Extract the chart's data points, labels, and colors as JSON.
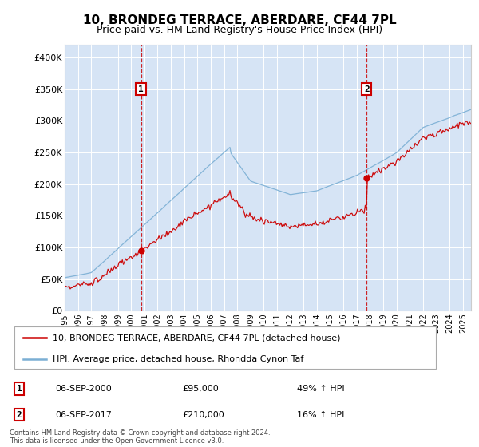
{
  "title": "10, BRONDEG TERRACE, ABERDARE, CF44 7PL",
  "subtitle": "Price paid vs. HM Land Registry's House Price Index (HPI)",
  "red_label": "10, BRONDEG TERRACE, ABERDARE, CF44 7PL (detached house)",
  "blue_label": "HPI: Average price, detached house, Rhondda Cynon Taf",
  "annotation1_label": "1",
  "annotation1_date": "06-SEP-2000",
  "annotation1_price": "£95,000",
  "annotation1_hpi": "49% ↑ HPI",
  "annotation2_label": "2",
  "annotation2_date": "06-SEP-2017",
  "annotation2_price": "£210,000",
  "annotation2_hpi": "16% ↑ HPI",
  "footer": "Contains HM Land Registry data © Crown copyright and database right 2024.\nThis data is licensed under the Open Government Licence v3.0.",
  "bg_color": "#d6e4f5",
  "red_color": "#cc0000",
  "blue_color": "#7bafd4",
  "grid_color": "#ffffff",
  "spine_color": "#cccccc",
  "sale1_year": 2000.75,
  "sale1_price": 95000,
  "sale2_year": 2017.75,
  "sale2_price": 210000,
  "ylim_max": 420000,
  "yticks": [
    0,
    50000,
    100000,
    150000,
    200000,
    250000,
    300000,
    350000,
    400000
  ],
  "ylabels": [
    "£0",
    "£50K",
    "£100K",
    "£150K",
    "£200K",
    "£250K",
    "£300K",
    "£350K",
    "£400K"
  ],
  "xstart": 1995.0,
  "xend": 2025.6
}
